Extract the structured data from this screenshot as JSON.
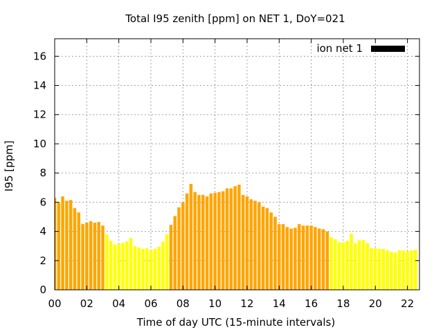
{
  "chart_data": {
    "type": "bar",
    "title": "Total I95 zenith [ppm] on NET 1, DoY=021",
    "xlabel": "Time of day UTC (15-minute intervals)",
    "ylabel": "I95 [ppm]",
    "xlim": [
      0,
      22.75
    ],
    "ylim": [
      0,
      17.2
    ],
    "x_ticks": [
      "00",
      "02",
      "04",
      "06",
      "08",
      "10",
      "12",
      "14",
      "16",
      "18",
      "20",
      "22"
    ],
    "y_ticks": [
      0,
      2,
      4,
      6,
      8,
      10,
      12,
      14,
      16
    ],
    "grid": true,
    "legend": {
      "position": "top-right",
      "entries": [
        {
          "label": "ion net 1",
          "color": "#000000"
        }
      ]
    },
    "colors": {
      "orange": "#ffa500",
      "yellow": "#ffff00"
    },
    "interval_hours": 0.25,
    "series": [
      {
        "name": "ion net 1",
        "values": [
          6.3,
          6.0,
          6.4,
          6.1,
          6.15,
          5.6,
          5.3,
          4.5,
          4.6,
          4.7,
          4.6,
          4.65,
          4.4,
          3.8,
          3.35,
          3.1,
          3.15,
          3.2,
          3.3,
          3.55,
          3.0,
          2.9,
          2.8,
          2.85,
          2.7,
          2.8,
          2.95,
          3.3,
          3.8,
          4.45,
          5.05,
          5.65,
          6.0,
          6.6,
          7.25,
          6.7,
          6.5,
          6.5,
          6.4,
          6.6,
          6.65,
          6.7,
          6.75,
          6.95,
          6.95,
          7.1,
          7.2,
          6.5,
          6.4,
          6.2,
          6.1,
          6.0,
          5.7,
          5.6,
          5.3,
          5.0,
          4.5,
          4.5,
          4.3,
          4.2,
          4.25,
          4.5,
          4.4,
          4.4,
          4.4,
          4.3,
          4.2,
          4.15,
          4.0,
          3.6,
          3.45,
          3.25,
          3.25,
          3.35,
          3.85,
          3.2,
          3.4,
          3.4,
          3.2,
          2.85,
          2.85,
          2.8,
          2.8,
          2.7,
          2.6,
          2.55,
          2.7,
          2.7,
          2.65,
          2.7,
          2.75
        ],
        "level": [
          "orange",
          "orange",
          "orange",
          "orange",
          "orange",
          "orange",
          "orange",
          "orange",
          "orange",
          "orange",
          "orange",
          "orange",
          "orange",
          "yellow",
          "yellow",
          "yellow",
          "yellow",
          "yellow",
          "yellow",
          "yellow",
          "yellow",
          "yellow",
          "yellow",
          "yellow",
          "yellow",
          "yellow",
          "yellow",
          "yellow",
          "yellow",
          "orange",
          "orange",
          "orange",
          "orange",
          "orange",
          "orange",
          "orange",
          "orange",
          "orange",
          "orange",
          "orange",
          "orange",
          "orange",
          "orange",
          "orange",
          "orange",
          "orange",
          "orange",
          "orange",
          "orange",
          "orange",
          "orange",
          "orange",
          "orange",
          "orange",
          "orange",
          "orange",
          "orange",
          "orange",
          "orange",
          "orange",
          "orange",
          "orange",
          "orange",
          "orange",
          "orange",
          "orange",
          "orange",
          "orange",
          "orange",
          "yellow",
          "yellow",
          "yellow",
          "yellow",
          "yellow",
          "yellow",
          "yellow",
          "yellow",
          "yellow",
          "yellow",
          "yellow",
          "yellow",
          "yellow",
          "yellow",
          "yellow",
          "yellow",
          "yellow",
          "yellow",
          "yellow",
          "yellow",
          "yellow",
          "yellow"
        ]
      }
    ]
  }
}
